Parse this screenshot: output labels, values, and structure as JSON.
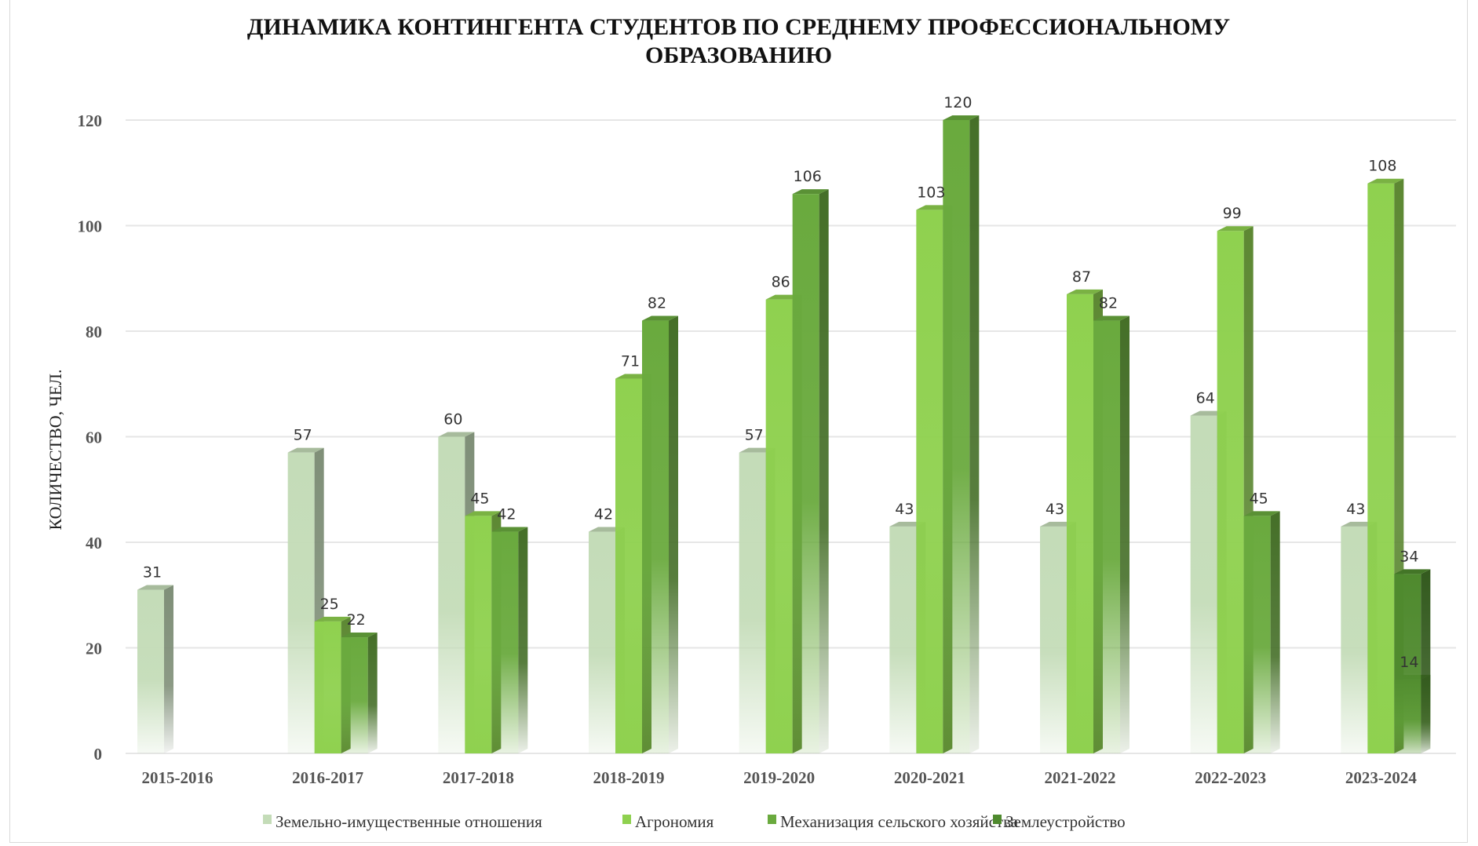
{
  "chart_data": {
    "type": "bar",
    "title": "ДИНАМИКА КОНТИНГЕНТА СТУДЕНТОВ  ПО СРЕДНЕМУ ПРОФЕССИОНАЛЬНОМУ ОБРАЗОВАНИЮ",
    "title_lines": [
      "ДИНАМИКА КОНТИНГЕНТА СТУДЕНТОВ  ПО СРЕДНЕМУ ПРОФЕССИОНАЛЬНОМУ",
      "ОБРАЗОВАНИЮ"
    ],
    "xlabel": "",
    "ylabel": "КОЛИЧЕСТВО, ЧЕЛ.",
    "ylim": [
      0,
      120
    ],
    "yticks": [
      0,
      20,
      40,
      60,
      80,
      100,
      120
    ],
    "grid": true,
    "legend_position": "bottom",
    "categories": [
      "2015-2016",
      "2016-2017",
      "2017-2018",
      "2018-2019",
      "2019-2020",
      "2020-2021",
      "2021-2022",
      "2022-2023",
      "2023-2024"
    ],
    "series": [
      {
        "name": "Земельно-имущественные отношения",
        "color": "#c4dcb8",
        "values": [
          31,
          57,
          60,
          42,
          57,
          43,
          43,
          64,
          43
        ]
      },
      {
        "name": "Агрономия",
        "color": "#8fd14f",
        "values": [
          null,
          25,
          45,
          71,
          86,
          103,
          87,
          99,
          108
        ]
      },
      {
        "name": "Механизация сельского хозяйства",
        "color": "#6aaa3e",
        "values": [
          null,
          22,
          42,
          82,
          106,
          120,
          82,
          45,
          14
        ]
      },
      {
        "name": "Землеустройство",
        "color": "#4f8a2e",
        "values": [
          null,
          null,
          null,
          null,
          null,
          null,
          null,
          null,
          34
        ]
      }
    ]
  }
}
